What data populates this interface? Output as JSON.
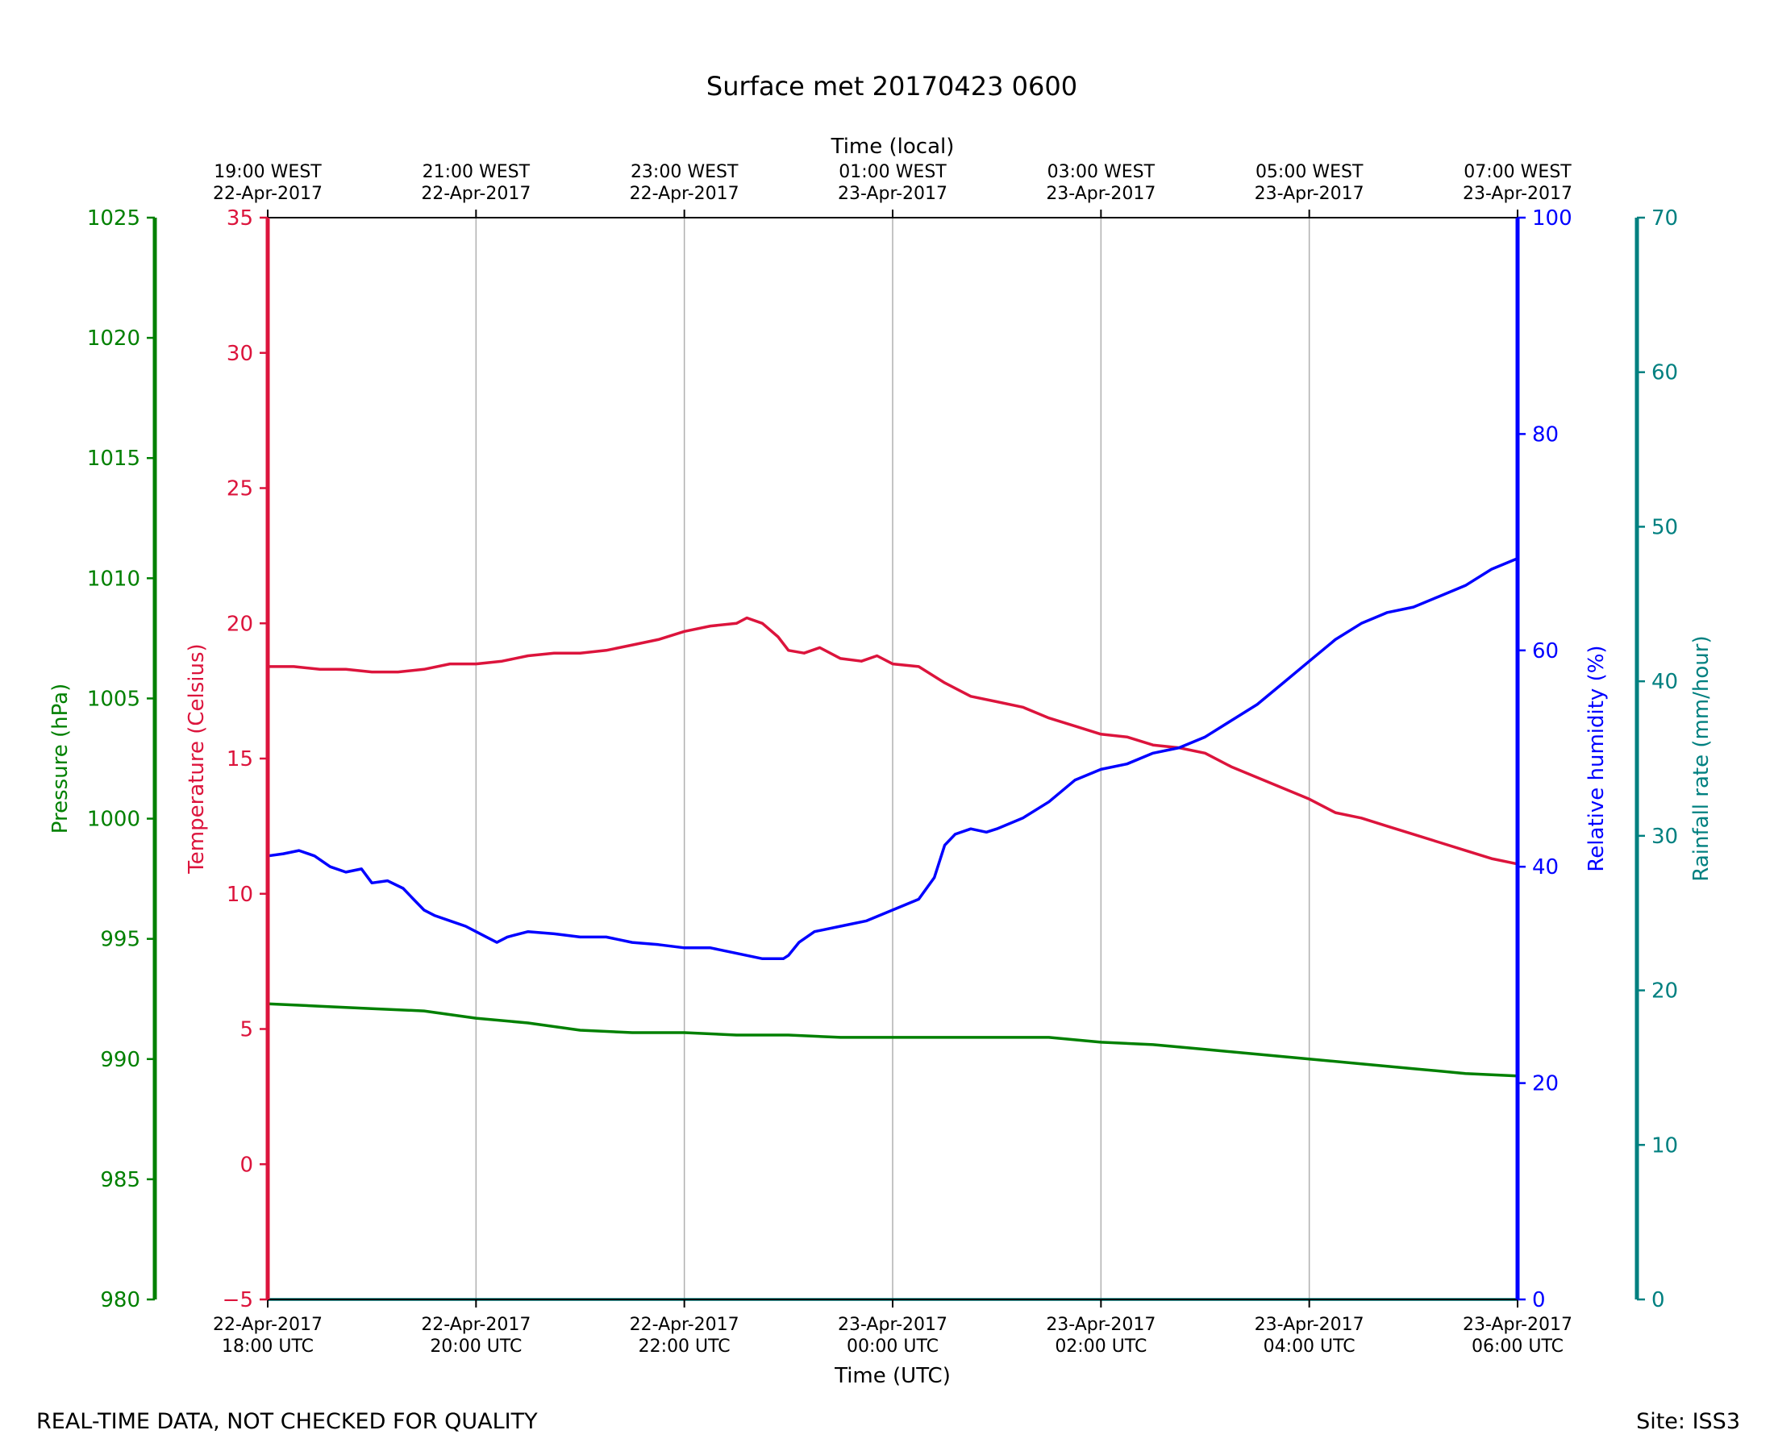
{
  "chart_data": {
    "type": "line",
    "title": "Surface met 20170423 0600",
    "x_bottom_label": "Time (UTC)",
    "x_top_label": "Time (local)",
    "x_range_hours": [
      0,
      12
    ],
    "x_ticks_hours": [
      0,
      2,
      4,
      6,
      8,
      10,
      12
    ],
    "x_ticks_bottom": [
      [
        "22-Apr-2017",
        "18:00 UTC"
      ],
      [
        "22-Apr-2017",
        "20:00 UTC"
      ],
      [
        "22-Apr-2017",
        "22:00 UTC"
      ],
      [
        "23-Apr-2017",
        "00:00 UTC"
      ],
      [
        "23-Apr-2017",
        "02:00 UTC"
      ],
      [
        "23-Apr-2017",
        "04:00 UTC"
      ],
      [
        "23-Apr-2017",
        "06:00 UTC"
      ]
    ],
    "x_ticks_top": [
      [
        "19:00 WEST",
        "22-Apr-2017"
      ],
      [
        "21:00 WEST",
        "22-Apr-2017"
      ],
      [
        "23:00 WEST",
        "22-Apr-2017"
      ],
      [
        "01:00 WEST",
        "23-Apr-2017"
      ],
      [
        "03:00 WEST",
        "23-Apr-2017"
      ],
      [
        "05:00 WEST",
        "23-Apr-2017"
      ],
      [
        "07:00 WEST",
        "23-Apr-2017"
      ]
    ],
    "axes": {
      "pressure": {
        "label": "Pressure (hPa)",
        "color": "#008000",
        "range": [
          980,
          1025
        ],
        "ticks": [
          980,
          985,
          990,
          995,
          1000,
          1005,
          1010,
          1015,
          1020,
          1025
        ]
      },
      "temperature": {
        "label": "Temperature (Celsius)",
        "color": "#dc143c",
        "range": [
          -5,
          35
        ],
        "ticks": [
          -5,
          0,
          5,
          10,
          15,
          20,
          25,
          30,
          35
        ],
        "tick_labels": [
          "−5",
          "0",
          "5",
          "10",
          "15",
          "20",
          "25",
          "30",
          "35"
        ]
      },
      "humidity": {
        "label": "Relative humidity (%)",
        "color": "#0000ff",
        "range": [
          0,
          100
        ],
        "ticks": [
          0,
          20,
          40,
          60,
          80,
          100
        ]
      },
      "rainfall": {
        "label": "Rainfall rate (mm/hour)",
        "color": "#008080",
        "range": [
          0,
          70
        ],
        "ticks": [
          0,
          10,
          20,
          30,
          40,
          50,
          60,
          70
        ]
      }
    },
    "series": [
      {
        "name": "Temperature",
        "axis": "temperature",
        "color": "#dc143c",
        "points": [
          [
            0,
            18.4
          ],
          [
            0.25,
            18.4
          ],
          [
            0.5,
            18.3
          ],
          [
            0.75,
            18.3
          ],
          [
            1.0,
            18.2
          ],
          [
            1.25,
            18.2
          ],
          [
            1.5,
            18.3
          ],
          [
            1.75,
            18.5
          ],
          [
            2.0,
            18.5
          ],
          [
            2.25,
            18.6
          ],
          [
            2.5,
            18.8
          ],
          [
            2.75,
            18.9
          ],
          [
            3.0,
            18.9
          ],
          [
            3.25,
            19.0
          ],
          [
            3.5,
            19.2
          ],
          [
            3.75,
            19.4
          ],
          [
            4.0,
            19.7
          ],
          [
            4.25,
            19.9
          ],
          [
            4.5,
            20.0
          ],
          [
            4.6,
            20.2
          ],
          [
            4.75,
            20.0
          ],
          [
            4.9,
            19.5
          ],
          [
            5.0,
            19.0
          ],
          [
            5.15,
            18.9
          ],
          [
            5.3,
            19.1
          ],
          [
            5.5,
            18.7
          ],
          [
            5.7,
            18.6
          ],
          [
            5.85,
            18.8
          ],
          [
            6.0,
            18.5
          ],
          [
            6.25,
            18.4
          ],
          [
            6.5,
            17.8
          ],
          [
            6.75,
            17.3
          ],
          [
            7.0,
            17.1
          ],
          [
            7.25,
            16.9
          ],
          [
            7.5,
            16.5
          ],
          [
            7.75,
            16.2
          ],
          [
            8.0,
            15.9
          ],
          [
            8.25,
            15.8
          ],
          [
            8.5,
            15.5
          ],
          [
            8.75,
            15.4
          ],
          [
            9.0,
            15.2
          ],
          [
            9.25,
            14.7
          ],
          [
            9.5,
            14.3
          ],
          [
            9.75,
            13.9
          ],
          [
            10.0,
            13.5
          ],
          [
            10.25,
            13.0
          ],
          [
            10.5,
            12.8
          ],
          [
            10.75,
            12.5
          ],
          [
            11.0,
            12.2
          ],
          [
            11.25,
            11.9
          ],
          [
            11.5,
            11.6
          ],
          [
            11.75,
            11.3
          ],
          [
            12.0,
            11.1
          ]
        ],
        "note": "temperature x scaled to 12h span"
      },
      {
        "name": "Relative humidity",
        "axis": "humidity",
        "color": "#0000ff",
        "points": [
          [
            0,
            41
          ],
          [
            0.15,
            41.2
          ],
          [
            0.3,
            41.5
          ],
          [
            0.45,
            41
          ],
          [
            0.6,
            40
          ],
          [
            0.75,
            39.5
          ],
          [
            0.9,
            39.8
          ],
          [
            1.0,
            38.5
          ],
          [
            1.15,
            38.7
          ],
          [
            1.3,
            38
          ],
          [
            1.4,
            37
          ],
          [
            1.5,
            36
          ],
          [
            1.6,
            35.5
          ],
          [
            1.75,
            35
          ],
          [
            1.9,
            34.5
          ],
          [
            2.0,
            34
          ],
          [
            2.1,
            33.5
          ],
          [
            2.2,
            33
          ],
          [
            2.3,
            33.5
          ],
          [
            2.5,
            34
          ],
          [
            2.75,
            33.8
          ],
          [
            3.0,
            33.5
          ],
          [
            3.25,
            33.5
          ],
          [
            3.5,
            33
          ],
          [
            3.75,
            32.8
          ],
          [
            4.0,
            32.5
          ],
          [
            4.25,
            32.5
          ],
          [
            4.5,
            32
          ],
          [
            4.75,
            31.5
          ],
          [
            4.95,
            31.5
          ],
          [
            5.0,
            31.8
          ],
          [
            5.1,
            33
          ],
          [
            5.25,
            34
          ],
          [
            5.5,
            34.5
          ],
          [
            5.75,
            35
          ],
          [
            6.0,
            36
          ],
          [
            6.25,
            37
          ],
          [
            6.4,
            39
          ],
          [
            6.5,
            42
          ],
          [
            6.6,
            43
          ],
          [
            6.75,
            43.5
          ],
          [
            6.9,
            43.2
          ],
          [
            7.0,
            43.5
          ],
          [
            7.25,
            44.5
          ],
          [
            7.5,
            46
          ],
          [
            7.75,
            48
          ],
          [
            8.0,
            49
          ],
          [
            8.25,
            49.5
          ],
          [
            8.5,
            50.5
          ],
          [
            8.75,
            51
          ],
          [
            9.0,
            52
          ],
          [
            9.25,
            53.5
          ],
          [
            9.5,
            55
          ],
          [
            9.75,
            57
          ],
          [
            10.0,
            59
          ],
          [
            10.25,
            61
          ],
          [
            10.5,
            62.5
          ],
          [
            10.75,
            63.5
          ],
          [
            11.0,
            64
          ],
          [
            11.25,
            65
          ],
          [
            11.5,
            66
          ],
          [
            11.75,
            67.5
          ],
          [
            12.0,
            68.5
          ]
        ],
        "note": "humidity x scaled to 12h span"
      },
      {
        "name": "Pressure",
        "axis": "pressure",
        "color": "#008000",
        "points": [
          [
            0,
            992.3
          ],
          [
            0.5,
            992.2
          ],
          [
            1.0,
            992.1
          ],
          [
            1.5,
            992.0
          ],
          [
            2.0,
            991.7
          ],
          [
            2.5,
            991.5
          ],
          [
            3.0,
            991.2
          ],
          [
            3.5,
            991.1
          ],
          [
            4.0,
            991.1
          ],
          [
            4.5,
            991.0
          ],
          [
            5.0,
            991.0
          ],
          [
            5.5,
            990.9
          ],
          [
            6.0,
            990.9
          ],
          [
            6.5,
            990.9
          ],
          [
            7.0,
            990.9
          ],
          [
            7.5,
            990.9
          ],
          [
            8.0,
            990.7
          ],
          [
            8.5,
            990.6
          ],
          [
            9.0,
            990.4
          ],
          [
            9.5,
            990.2
          ],
          [
            10.0,
            990.0
          ],
          [
            10.5,
            989.8
          ],
          [
            11.0,
            989.6
          ],
          [
            11.5,
            989.4
          ],
          [
            12.0,
            989.3
          ]
        ]
      },
      {
        "name": "Rainfall rate",
        "axis": "rainfall",
        "color": "#008080",
        "points": [
          [
            0,
            0
          ],
          [
            12,
            0
          ]
        ]
      }
    ]
  },
  "footer": {
    "left": "REAL-TIME DATA, NOT CHECKED FOR QUALITY",
    "right": "Site: ISS3"
  }
}
